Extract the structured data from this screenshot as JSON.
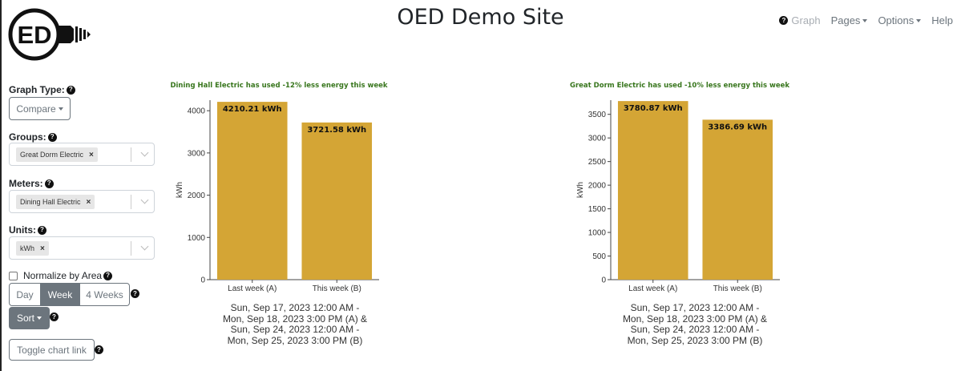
{
  "header": {
    "title": "OED Demo Site",
    "nav": [
      {
        "label": "Graph",
        "icon": "help-icon",
        "disabled": true
      },
      {
        "label": "Pages",
        "dropdown": true
      },
      {
        "label": "Options",
        "dropdown": true
      },
      {
        "label": "Help"
      }
    ]
  },
  "logo": {
    "text": "ED"
  },
  "sidebar": {
    "graph_type_label": "Graph Type:",
    "graph_type_value": "Compare",
    "groups_label": "Groups:",
    "groups_selected": "Great Dorm Electric",
    "meters_label": "Meters:",
    "meters_selected": "Dining Hall Electric",
    "units_label": "Units:",
    "units_selected": "kWh",
    "chip_remove": "×",
    "normalize_label": "Normalize by Area",
    "normalize_checked": false,
    "period_options": [
      "Day",
      "Week",
      "4 Weeks"
    ],
    "period_selected": "Week",
    "sort_label": "Sort",
    "toggle_link_label": "Toggle chart link"
  },
  "colors": {
    "bar": "#d4a535",
    "caption_green": "#38761d",
    "button_gray": "#6c757d"
  },
  "chart_data": [
    {
      "type": "bar",
      "title": "Dining Hall Electric  has used -12% less energy this week",
      "categories": [
        "Last week (A)",
        "This week (B)"
      ],
      "values": [
        4210.21,
        3721.58
      ],
      "value_labels": [
        "4210.21 kWh",
        "3721.58 kWh"
      ],
      "ylabel": "kWh",
      "ylim": [
        0,
        4250
      ],
      "yticks": [
        0,
        1000,
        2000,
        3000,
        4000
      ],
      "caption": [
        "Sun, Sep 17, 2023 12:00 AM -",
        "Mon, Sep 18, 2023 3:00 PM (A) &",
        "Sun, Sep 24, 2023 12:00 AM -",
        "Mon, Sep 25, 2023 3:00 PM (B)"
      ]
    },
    {
      "type": "bar",
      "title": "Great Dorm Electric  has used -10% less energy this week",
      "categories": [
        "Last week (A)",
        "This week (B)"
      ],
      "values": [
        3780.87,
        3386.69
      ],
      "value_labels": [
        "3780.87 kWh",
        "3386.69 kWh"
      ],
      "ylabel": "kWh",
      "ylim": [
        0,
        3800
      ],
      "yticks": [
        0,
        500,
        1000,
        1500,
        2000,
        2500,
        3000,
        3500
      ],
      "caption": [
        "Sun, Sep 17, 2023 12:00 AM -",
        "Mon, Sep 18, 2023 3:00 PM (A) &",
        "Sun, Sep 24, 2023 12:00 AM -",
        "Mon, Sep 25, 2023 3:00 PM (B)"
      ]
    }
  ]
}
